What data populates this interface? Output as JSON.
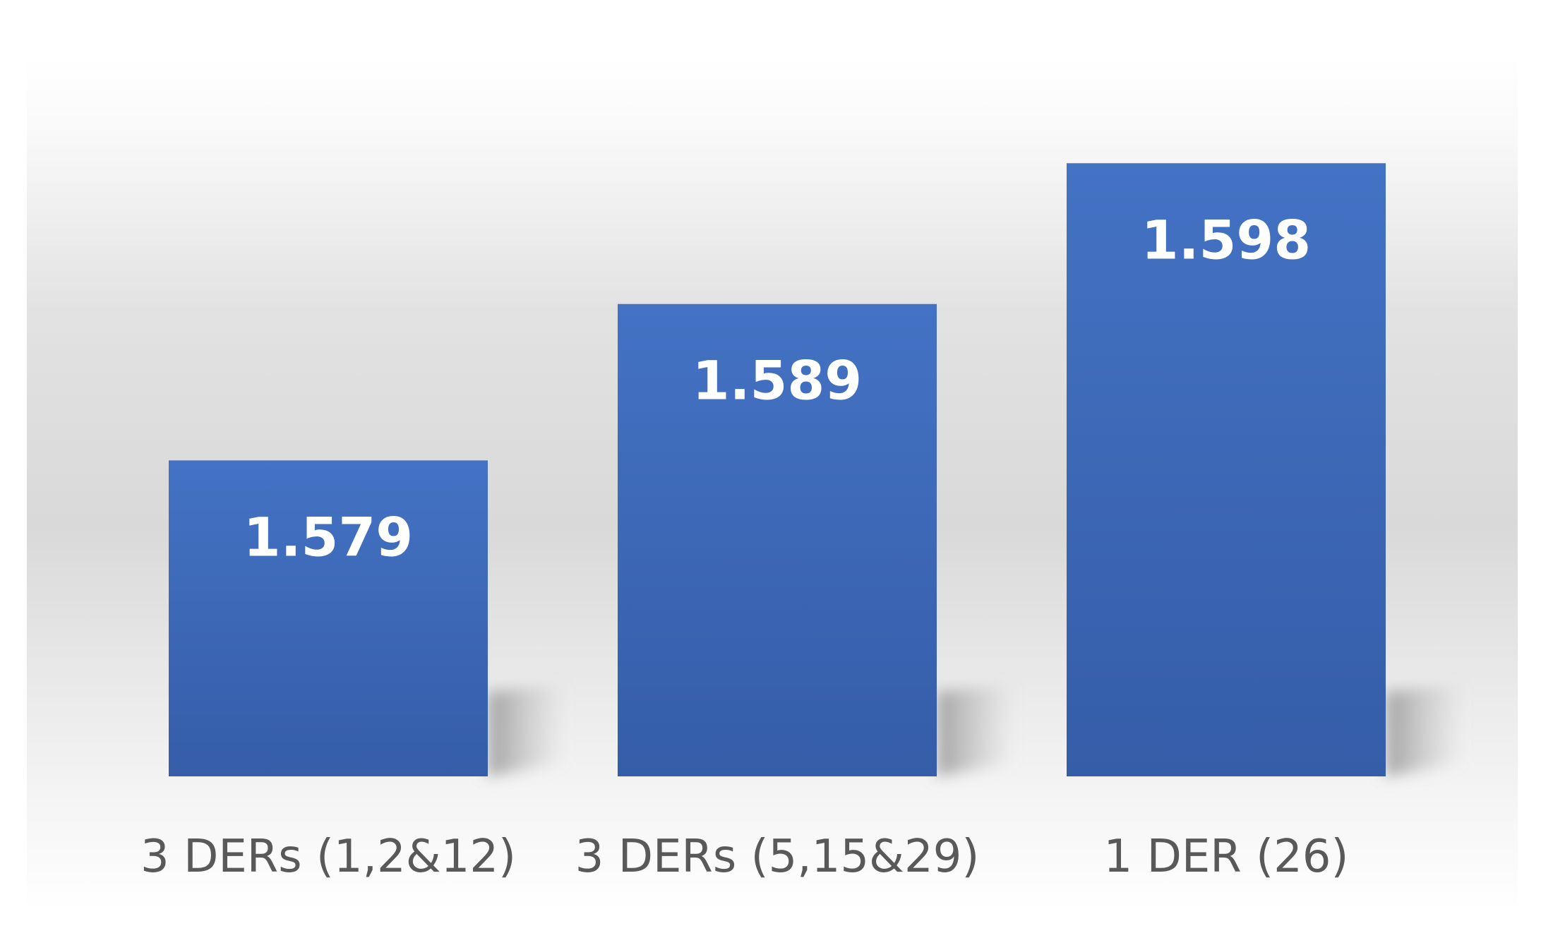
{
  "chart_data": {
    "type": "bar",
    "categories": [
      "3 DERs (1,2&12)",
      "3 DERs (5,15&29)",
      "1 DER (26)"
    ],
    "values": [
      1.579,
      1.589,
      1.598
    ],
    "data_labels": [
      "1.579",
      "1.589",
      "1.598"
    ],
    "title": "",
    "xlabel": "",
    "ylabel": "",
    "ylim": [
      1.5588,
      1.6046
    ],
    "grid": false,
    "legend": "none",
    "bar_color_top": "#4472C4",
    "bar_color_bottom": "#355DA8",
    "label_color": "#ffffff",
    "category_label_color": "#595959",
    "background_gradient": [
      "#ffffff",
      "#d9d9d9",
      "#ffffff"
    ]
  }
}
